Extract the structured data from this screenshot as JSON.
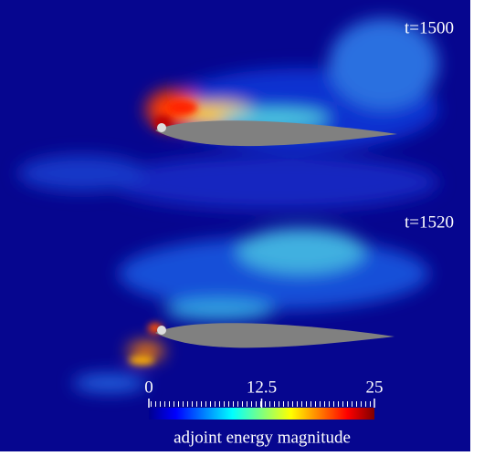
{
  "panels": [
    {
      "time_label": "t=1500"
    },
    {
      "time_label": "t=1520"
    }
  ],
  "colorbar": {
    "range": [
      0,
      25
    ],
    "ticks": [
      0,
      12.5,
      25
    ],
    "label": "adjoint energy magnitude"
  }
}
